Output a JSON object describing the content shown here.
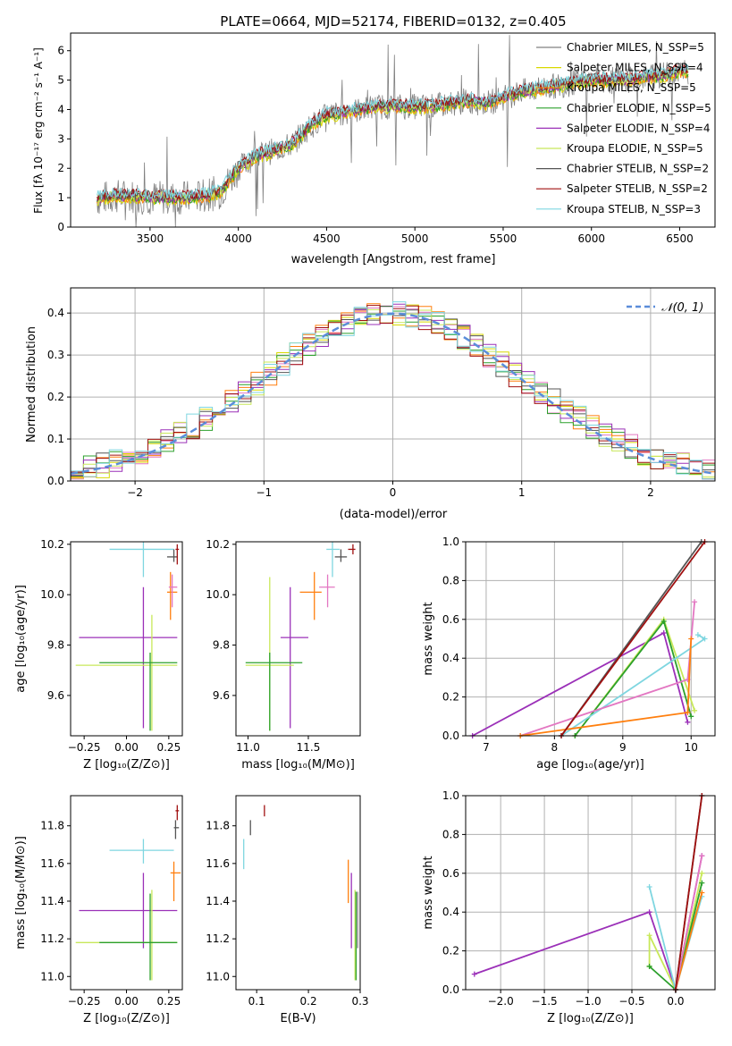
{
  "figure_title": "PLATE=0664, MJD=52174, FIBERID=0132, z=0.405",
  "colors": {
    "chabrier_miles": "#808080",
    "salpeter_miles": "#d9d900",
    "kroupa_miles": "#ff7f0e",
    "chabrier_elodie": "#2ca02c",
    "salpeter_elodie": "#9b30b8",
    "kroupa_elodie": "#c8e85a",
    "chabrier_stelib": "#555555",
    "salpeter_stelib": "#a01010",
    "kroupa_stelib": "#7fd6e0",
    "pink": "#e377c2",
    "normal_curve": "#5b8dd9",
    "grid": "#b0b0b0"
  },
  "panels": {
    "spectrum": {
      "xlabel": "wavelength [Angstrom, rest frame]",
      "ylabel": "Flux [fλ 10⁻¹⁷ erg cm⁻² s⁻¹ A⁻¹]",
      "xticks": [
        "3500",
        "4000",
        "4500",
        "5000",
        "5500",
        "6000",
        "6500"
      ],
      "yticks": [
        "0",
        "1",
        "2",
        "3",
        "4",
        "5",
        "6"
      ]
    },
    "residuals": {
      "xlabel": "(data-model)/error",
      "ylabel": "Normed distribution",
      "xticks": [
        "−2",
        "−1",
        "0",
        "1",
        "2"
      ],
      "yticks": [
        "0.0",
        "0.1",
        "0.2",
        "0.3",
        "0.4"
      ],
      "normal_label": "𝒩(0, 1)"
    },
    "age_vs_z": {
      "xlabel": "Z [log₁₀(Z/Z⊙)]",
      "ylabel": "age  [log₁₀(age/yr)]",
      "xticks": [
        "−0.25",
        "0.00",
        "0.25"
      ],
      "yticks": [
        "9.6",
        "9.8",
        "10.0",
        "10.2"
      ]
    },
    "age_vs_mass": {
      "xlabel": "mass [log₁₀(M/M⊙)]",
      "xticks": [
        "11.0",
        "11.5"
      ],
      "yticks": [
        "9.6",
        "9.8",
        "10.0",
        "10.2"
      ]
    },
    "weight_vs_age": {
      "xlabel": "age  [log₁₀(age/yr)]",
      "ylabel": "mass weight",
      "xticks": [
        "7",
        "8",
        "9",
        "10"
      ],
      "yticks": [
        "0.0",
        "0.2",
        "0.4",
        "0.6",
        "0.8",
        "1.0"
      ]
    },
    "mass_vs_z": {
      "xlabel": "Z [log₁₀(Z/Z⊙)]",
      "ylabel": "mass [log₁₀(M/M⊙)]",
      "xticks": [
        "−0.25",
        "0.00",
        "0.25"
      ],
      "yticks": [
        "11.0",
        "11.2",
        "11.4",
        "11.6",
        "11.8"
      ]
    },
    "mass_vs_ebv": {
      "xlabel": "E(B-V)",
      "xticks": [
        "0.1",
        "0.2",
        "0.3"
      ],
      "yticks": [
        "11.0",
        "11.2",
        "11.4",
        "11.6",
        "11.8"
      ]
    },
    "weight_vs_z": {
      "xlabel": "Z [log₁₀(Z/Z⊙)]",
      "ylabel": "mass weight",
      "xticks": [
        "−2.0",
        "−1.5",
        "−1.0",
        "−0.5",
        "0.0"
      ],
      "yticks": [
        "0.0",
        "0.2",
        "0.4",
        "0.6",
        "0.8",
        "1.0"
      ]
    }
  },
  "chart_data": [
    {
      "type": "line",
      "title": "PLATE=0664, MJD=52174, FIBERID=0132, z=0.405",
      "xlabel": "wavelength [Angstrom, rest frame]",
      "ylabel": "Flux [fλ 10⁻¹⁷ erg cm⁻² s⁻¹ A⁻¹]",
      "xlim": [
        3050,
        6700
      ],
      "ylim": [
        0,
        6.6
      ],
      "legend_position": "top-right",
      "x": [
        3200,
        3300,
        3400,
        3500,
        3600,
        3700,
        3800,
        3900,
        4000,
        4100,
        4200,
        4300,
        4400,
        4500,
        4600,
        4700,
        4800,
        4900,
        5000,
        5100,
        5200,
        5300,
        5400,
        5500,
        5600,
        5700,
        5800,
        5900,
        6000,
        6100,
        6200,
        6300,
        6400,
        6500
      ],
      "series": [
        {
          "name": "Chabrier MILES, N_SSP=5",
          "color": "#808080"
        },
        {
          "name": "Salpeter MILES, N_SSP=4",
          "color": "#d9d900"
        },
        {
          "name": "Kroupa MILES, N_SSP=5",
          "color": "#ff7f0e"
        },
        {
          "name": "Chabrier ELODIE, N_SSP=5",
          "color": "#2ca02c"
        },
        {
          "name": "Salpeter ELODIE, N_SSP=4",
          "color": "#9b30b8"
        },
        {
          "name": "Kroupa ELODIE, N_SSP=5",
          "color": "#c8e85a"
        },
        {
          "name": "Chabrier STELIB, N_SSP=2",
          "color": "#555555"
        },
        {
          "name": "Salpeter STELIB, N_SSP=2",
          "color": "#a01010"
        },
        {
          "name": "Kroupa STELIB, N_SSP=3",
          "color": "#7fd6e0"
        }
      ],
      "model_flux": [
        0.95,
        1.05,
        1.05,
        1.0,
        1.0,
        1.0,
        1.05,
        1.2,
        2.0,
        2.4,
        2.6,
        2.8,
        3.4,
        3.8,
        3.9,
        4.0,
        4.1,
        4.1,
        4.1,
        4.1,
        4.2,
        4.3,
        4.2,
        4.4,
        4.6,
        4.7,
        4.8,
        4.9,
        5.0,
        5.0,
        5.0,
        5.1,
        5.15,
        5.3
      ]
    },
    {
      "type": "line",
      "xlabel": "(data-model)/error",
      "ylabel": "Normed distribution",
      "xlim": [
        -2.5,
        2.5
      ],
      "ylim": [
        0,
        0.46
      ],
      "legend_position": "top-right",
      "normal_series": {
        "name": "𝒩(0, 1)",
        "mean": 0,
        "sigma": 1
      },
      "bin_centers": [
        -2.4,
        -2.2,
        -2.0,
        -1.8,
        -1.6,
        -1.4,
        -1.2,
        -1.0,
        -0.8,
        -0.6,
        -0.4,
        -0.2,
        0.0,
        0.2,
        0.4,
        0.6,
        0.8,
        1.0,
        1.2,
        1.4,
        1.6,
        1.8,
        2.0,
        2.2,
        2.4
      ],
      "histogram_envelope": [
        0.03,
        0.06,
        0.07,
        0.09,
        0.12,
        0.15,
        0.19,
        0.24,
        0.29,
        0.33,
        0.36,
        0.38,
        0.41,
        0.4,
        0.38,
        0.36,
        0.33,
        0.3,
        0.26,
        0.22,
        0.16,
        0.12,
        0.09,
        0.06,
        0.04
      ]
    },
    {
      "type": "scatter",
      "subtype": "errorbar",
      "xlabel": "Z [log₁₀(Z/Z⊙)]",
      "ylabel": "age  [log₁₀(age/yr)]",
      "xlim": [
        -0.33,
        0.33
      ],
      "ylim": [
        9.44,
        10.21
      ],
      "points": [
        {
          "color": "#9b30b8",
          "x": 0.1,
          "xerr": [
            0.38,
            0.2
          ],
          "y": 9.83,
          "yerr": [
            0.36,
            0.2
          ]
        },
        {
          "color": "#c8e85a",
          "x": 0.15,
          "xerr": [
            0.45,
            0.15
          ],
          "y": 9.72,
          "yerr": [
            0.26,
            0.2
          ]
        },
        {
          "color": "#2ca02c",
          "x": 0.14,
          "xerr": [
            0.3,
            0.16
          ],
          "y": 9.73,
          "yerr": [
            0.27,
            0.04
          ]
        },
        {
          "color": "#7fd6e0",
          "x": 0.1,
          "xerr": [
            0.2,
            0.18
          ],
          "y": 10.18,
          "yerr": [
            0.11,
            0.03
          ]
        },
        {
          "color": "#ff7f0e",
          "x": 0.26,
          "xerr": [
            0.02,
            0.04
          ],
          "y": 10.01,
          "yerr": [
            0.11,
            0.08
          ]
        },
        {
          "color": "#e377c2",
          "x": 0.27,
          "xerr": [
            0.02,
            0.03
          ],
          "y": 10.03,
          "yerr": [
            0.08,
            0.05
          ]
        },
        {
          "color": "#555555",
          "x": 0.28,
          "xerr": [
            0.04,
            0.02
          ],
          "y": 10.15,
          "yerr": [
            0.02,
            0.03
          ]
        },
        {
          "color": "#a01010",
          "x": 0.3,
          "xerr": [
            0.01,
            0.01
          ],
          "y": 10.18,
          "yerr": [
            0.06,
            0.02
          ]
        }
      ]
    },
    {
      "type": "scatter",
      "subtype": "errorbar",
      "xlabel": "mass [log₁₀(M/M⊙)]",
      "xlim": [
        10.9,
        11.93
      ],
      "ylim": [
        9.44,
        10.21
      ],
      "points": [
        {
          "color": "#9b30b8",
          "x": 11.35,
          "xerr": [
            0.08,
            0.15
          ],
          "y": 9.83,
          "yerr": [
            0.36,
            0.2
          ]
        },
        {
          "color": "#c8e85a",
          "x": 11.18,
          "xerr": [
            0.2,
            0.2
          ],
          "y": 9.72,
          "yerr": [
            0.26,
            0.35
          ]
        },
        {
          "color": "#2ca02c",
          "x": 11.18,
          "xerr": [
            0.2,
            0.27
          ],
          "y": 9.73,
          "yerr": [
            0.27,
            0.04
          ]
        },
        {
          "color": "#7fd6e0",
          "x": 11.7,
          "xerr": [
            0.05,
            0.06
          ],
          "y": 10.18,
          "yerr": [
            0.11,
            0.03
          ]
        },
        {
          "color": "#ff7f0e",
          "x": 11.55,
          "xerr": [
            0.12,
            0.06
          ],
          "y": 10.01,
          "yerr": [
            0.11,
            0.08
          ]
        },
        {
          "color": "#e377c2",
          "x": 11.66,
          "xerr": [
            0.07,
            0.06
          ],
          "y": 10.03,
          "yerr": [
            0.08,
            0.05
          ]
        },
        {
          "color": "#555555",
          "x": 11.77,
          "xerr": [
            0.05,
            0.05
          ],
          "y": 10.15,
          "yerr": [
            0.02,
            0.03
          ]
        },
        {
          "color": "#a01010",
          "x": 11.87,
          "xerr": [
            0.04,
            0.02
          ],
          "y": 10.18,
          "yerr": [
            0.02,
            0.02
          ]
        }
      ]
    },
    {
      "type": "line",
      "xlabel": "age  [log₁₀(age/yr)]",
      "ylabel": "mass weight",
      "xlim": [
        6.7,
        10.35
      ],
      "ylim": [
        0,
        1.0
      ],
      "grid": true,
      "series": [
        {
          "color": "#9b30b8",
          "x": [
            6.8,
            9.6,
            9.95
          ],
          "y": [
            0.0,
            0.53,
            0.07
          ]
        },
        {
          "color": "#c8e85a",
          "x": [
            8.3,
            9.6,
            10.05
          ],
          "y": [
            0.0,
            0.6,
            0.13
          ]
        },
        {
          "color": "#2ca02c",
          "x": [
            8.3,
            9.6,
            10.0
          ],
          "y": [
            0.0,
            0.59,
            0.1
          ]
        },
        {
          "color": "#7fd6e0",
          "x": [
            8.1,
            10.2,
            10.1
          ],
          "y": [
            0.0,
            0.5,
            0.52
          ]
        },
        {
          "color": "#e377c2",
          "x": [
            7.5,
            9.95,
            10.05
          ],
          "y": [
            0.0,
            0.29,
            0.69
          ]
        },
        {
          "color": "#ff7f0e",
          "x": [
            7.5,
            9.95,
            10.0
          ],
          "y": [
            0.0,
            0.12,
            0.5
          ]
        },
        {
          "color": "#555555",
          "x": [
            8.1,
            10.15
          ],
          "y": [
            0.0,
            1.0
          ]
        },
        {
          "color": "#a01010",
          "x": [
            8.1,
            10.2
          ],
          "y": [
            0.0,
            1.0
          ]
        }
      ]
    },
    {
      "type": "scatter",
      "subtype": "errorbar",
      "xlabel": "Z [log₁₀(Z/Z⊙)]",
      "ylabel": "mass [log₁₀(M/M⊙)]",
      "xlim": [
        -0.33,
        0.33
      ],
      "ylim": [
        10.93,
        11.96
      ],
      "points": [
        {
          "color": "#9b30b8",
          "x": 0.1,
          "xerr": [
            0.38,
            0.2
          ],
          "y": 11.35,
          "yerr": [
            0.2,
            0.2
          ]
        },
        {
          "color": "#c8e85a",
          "x": 0.15,
          "xerr": [
            0.45,
            0.15
          ],
          "y": 11.18,
          "yerr": [
            0.2,
            0.28
          ]
        },
        {
          "color": "#2ca02c",
          "x": 0.14,
          "xerr": [
            0.3,
            0.16
          ],
          "y": 11.18,
          "yerr": [
            0.2,
            0.26
          ]
        },
        {
          "color": "#7fd6e0",
          "x": 0.1,
          "xerr": [
            0.2,
            0.18
          ],
          "y": 11.67,
          "yerr": [
            0.07,
            0.06
          ]
        },
        {
          "color": "#ff7f0e",
          "x": 0.28,
          "xerr": [
            0.02,
            0.04
          ],
          "y": 11.55,
          "yerr": [
            0.15,
            0.06
          ]
        },
        {
          "color": "#555555",
          "x": 0.29,
          "xerr": [
            0.01,
            0.02
          ],
          "y": 11.79,
          "yerr": [
            0.06,
            0.04
          ]
        },
        {
          "color": "#a01010",
          "x": 0.3,
          "xerr": [
            0.01,
            0.01
          ],
          "y": 11.88,
          "yerr": [
            0.05,
            0.03
          ]
        }
      ]
    },
    {
      "type": "scatter",
      "subtype": "errorbar",
      "xlabel": "E(B-V)",
      "xlim": [
        0.06,
        0.3
      ],
      "ylim": [
        10.93,
        11.96
      ],
      "points": [
        {
          "color": "#7fd6e0",
          "x": 0.075,
          "y": 11.65,
          "yerr": [
            0.08,
            0.08
          ]
        },
        {
          "color": "#555555",
          "x": 0.088,
          "y": 11.79,
          "yerr": [
            0.04,
            0.04
          ]
        },
        {
          "color": "#a01010",
          "x": 0.115,
          "y": 11.88,
          "yerr": [
            0.03,
            0.03
          ]
        },
        {
          "color": "#ff7f0e",
          "x": 0.277,
          "y": 11.54,
          "yerr": [
            0.15,
            0.08
          ]
        },
        {
          "color": "#9b30b8",
          "x": 0.283,
          "y": 11.35,
          "yerr": [
            0.2,
            0.2
          ]
        },
        {
          "color": "#c8e85a",
          "x": 0.29,
          "y": 11.18,
          "yerr": [
            0.2,
            0.28
          ]
        },
        {
          "color": "#2ca02c",
          "x": 0.292,
          "y": 11.2,
          "yerr": [
            0.22,
            0.25
          ]
        },
        {
          "color": "#808080",
          "x": 0.295,
          "y": 11.3,
          "yerr": [
            0.15,
            0.15
          ]
        }
      ]
    },
    {
      "type": "line",
      "xlabel": "Z [log₁₀(Z/Z⊙)]",
      "ylabel": "mass weight",
      "xlim": [
        -2.4,
        0.45
      ],
      "ylim": [
        0,
        1.0
      ],
      "grid": true,
      "series": [
        {
          "color": "#9b30b8",
          "x": [
            -2.3,
            -0.3,
            0.0,
            0.3
          ],
          "y": [
            0.08,
            0.4,
            0.0,
            0.69
          ]
        },
        {
          "color": "#c8e85a",
          "x": [
            -0.3,
            -0.3,
            0.0,
            0.3
          ],
          "y": [
            0.12,
            0.28,
            0.0,
            0.6
          ]
        },
        {
          "color": "#2ca02c",
          "x": [
            -0.3,
            0.0,
            0.3
          ],
          "y": [
            0.12,
            0.0,
            0.55
          ]
        },
        {
          "color": "#7fd6e0",
          "x": [
            -0.3,
            0.0,
            0.3
          ],
          "y": [
            0.53,
            0.0,
            0.48
          ]
        },
        {
          "color": "#ff7f0e",
          "x": [
            0.0,
            0.3
          ],
          "y": [
            0.0,
            0.5
          ]
        },
        {
          "color": "#e377c2",
          "x": [
            0.0,
            0.3
          ],
          "y": [
            0.0,
            0.69
          ]
        },
        {
          "color": "#555555",
          "x": [
            0.0,
            0.3
          ],
          "y": [
            0.0,
            1.0
          ]
        },
        {
          "color": "#a01010",
          "x": [
            0.0,
            0.3
          ],
          "y": [
            0.0,
            1.0
          ]
        }
      ]
    }
  ]
}
